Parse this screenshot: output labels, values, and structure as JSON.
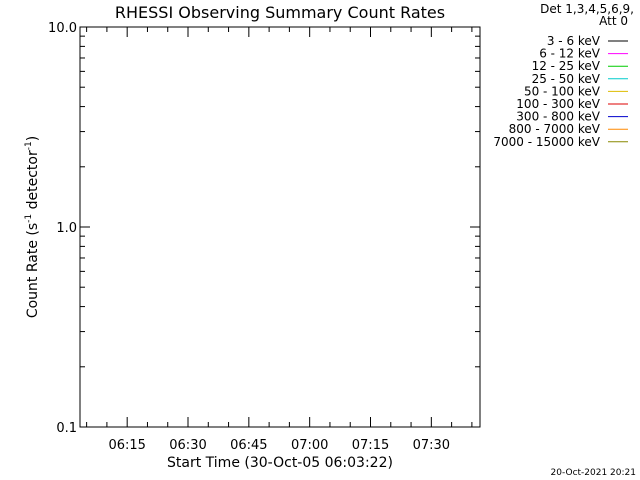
{
  "chart_data": {
    "type": "line",
    "title": "RHESSI Observing Summary Count Rates",
    "xlabel": "Start Time (30-Oct-05 06:03:22)",
    "ylabel_main": "Count Rate (s",
    "ylabel_sup1": "-1",
    "ylabel_mid": " detector",
    "ylabel_sup2": "-1",
    "ylabel_end": ")",
    "y_scale": "log",
    "ylim": [
      0.1,
      10.0
    ],
    "y_ticks": [
      {
        "value": 0.1,
        "label": "0.1"
      },
      {
        "value": 1.0,
        "label": "1.0"
      },
      {
        "value": 10.0,
        "label": "10.0"
      }
    ],
    "x_range": [
      "06:03:22",
      "07:42:00"
    ],
    "x_ticks": [
      "06:15",
      "06:30",
      "06:45",
      "07:00",
      "07:15",
      "07:30"
    ],
    "grid": false,
    "legend_placement": "top-right outside",
    "legend_header": [
      "Det 1,3,4,5,6,9,",
      "Att 0"
    ],
    "series": [
      {
        "name": "3 - 6 keV",
        "color": "#000000",
        "values": []
      },
      {
        "name": "6 - 12 keV",
        "color": "#ff00ff",
        "values": []
      },
      {
        "name": "12 - 25 keV",
        "color": "#00cc00",
        "values": []
      },
      {
        "name": "25 - 50 keV",
        "color": "#00cccc",
        "values": []
      },
      {
        "name": "50 - 100 keV",
        "color": "#ddbb00",
        "values": []
      },
      {
        "name": "100 - 300 keV",
        "color": "#dd0000",
        "values": []
      },
      {
        "name": "300 - 800 keV",
        "color": "#0000cc",
        "values": []
      },
      {
        "name": "800 - 7000 keV",
        "color": "#ff8800",
        "values": []
      },
      {
        "name": "7000 - 15000 keV",
        "color": "#888800",
        "values": []
      }
    ],
    "timestamp": "20-Oct-2021 20:21"
  }
}
